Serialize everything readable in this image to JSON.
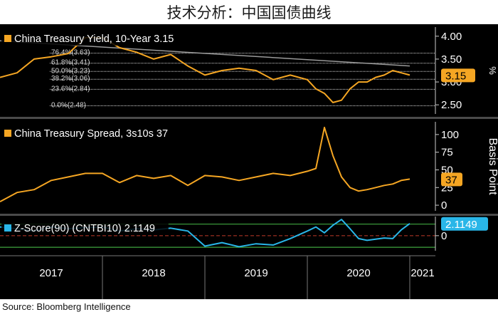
{
  "title": "技术分析：中国国债曲线",
  "source": "Source: Bloomberg Intelligence",
  "colors": {
    "background": "#000000",
    "orange": "#f5a623",
    "blue": "#29b6e8",
    "grey_trend": "#9a9a9a",
    "fib": "#d9d9d9",
    "green_band": "#3ea33e",
    "red_mid": "#c0392b"
  },
  "chart_data": [
    {
      "type": "line",
      "legend": "China Treasury Yield, 10-Year 3.15",
      "last_value_label": "3.15",
      "ylabel": "%",
      "ylim": [
        2.3,
        4.2
      ],
      "yticks": [
        2.5,
        3.0,
        3.5,
        4.0
      ],
      "ytick_labels": [
        "2.50",
        "3.00",
        "3.50",
        "4.00"
      ],
      "x": [
        "2017-01",
        "2017-03",
        "2017-05",
        "2017-07",
        "2017-09",
        "2017-11",
        "2018-01",
        "2018-03",
        "2018-05",
        "2018-07",
        "2018-09",
        "2018-11",
        "2019-01",
        "2019-03",
        "2019-05",
        "2019-07",
        "2019-09",
        "2019-11",
        "2020-01",
        "2020-02",
        "2020-03",
        "2020-04",
        "2020-05",
        "2020-06",
        "2020-07",
        "2020-08",
        "2020-09",
        "2020-10",
        "2020-11",
        "2020-12",
        "2021-01"
      ],
      "values": [
        3.1,
        3.2,
        3.5,
        3.55,
        3.62,
        3.97,
        3.97,
        3.75,
        3.65,
        3.5,
        3.6,
        3.35,
        3.15,
        3.25,
        3.3,
        3.25,
        3.05,
        3.15,
        3.05,
        2.85,
        2.75,
        2.55,
        2.6,
        2.85,
        3.0,
        3.0,
        3.1,
        3.15,
        3.25,
        3.2,
        3.15
      ],
      "trendline": {
        "x": [
          "2017-01",
          "2021-01"
        ],
        "y": [
          3.9,
          3.35
        ]
      },
      "fib_levels": [
        {
          "label": "0.0%(2.48)",
          "value": 2.48
        },
        {
          "label": "23.6%(2.84)",
          "value": 2.84
        },
        {
          "label": "38.2%(3.06)",
          "value": 3.06
        },
        {
          "label": "50.0%(3.23)",
          "value": 3.23
        },
        {
          "label": "61.8%(3.41)",
          "value": 3.41
        },
        {
          "label": "76.4%(3.63)",
          "value": 3.63
        }
      ]
    },
    {
      "type": "line",
      "legend": "China Treasury Spread, 3s10s 37",
      "last_value_label": "37",
      "ylabel": "Basis Point",
      "ylim": [
        -8,
        118
      ],
      "yticks": [
        0,
        25,
        50,
        75,
        100
      ],
      "ytick_labels": [
        "0",
        "25",
        "50",
        "75",
        "100"
      ],
      "x": [
        "2017-01",
        "2017-03",
        "2017-05",
        "2017-07",
        "2017-09",
        "2017-11",
        "2018-01",
        "2018-03",
        "2018-05",
        "2018-07",
        "2018-09",
        "2018-11",
        "2019-01",
        "2019-03",
        "2019-05",
        "2019-07",
        "2019-09",
        "2019-11",
        "2020-01",
        "2020-02",
        "2020-03",
        "2020-04",
        "2020-05",
        "2020-06",
        "2020-07",
        "2020-08",
        "2020-09",
        "2020-10",
        "2020-11",
        "2020-12",
        "2021-01"
      ],
      "values": [
        5,
        18,
        22,
        35,
        40,
        45,
        45,
        32,
        42,
        38,
        42,
        28,
        42,
        40,
        35,
        40,
        45,
        42,
        48,
        52,
        110,
        70,
        40,
        25,
        20,
        22,
        25,
        28,
        30,
        35,
        37
      ]
    },
    {
      "type": "line",
      "legend": "Z-Score(90) (CNTBI10) 2.1149",
      "last_value_label": "2.1149",
      "ylim": [
        -2.6,
        3.3
      ],
      "yticks": [
        0
      ],
      "ytick_labels": [
        "0"
      ],
      "bands": [
        2,
        -2
      ],
      "midline": 0,
      "x": [
        "2017-01",
        "2017-03",
        "2017-05",
        "2017-07",
        "2017-09",
        "2017-11",
        "2018-01",
        "2018-03",
        "2018-05",
        "2018-07",
        "2018-09",
        "2018-11",
        "2019-01",
        "2019-03",
        "2019-05",
        "2019-07",
        "2019-09",
        "2019-11",
        "2020-01",
        "2020-02",
        "2020-03",
        "2020-04",
        "2020-05",
        "2020-06",
        "2020-07",
        "2020-08",
        "2020-09",
        "2020-10",
        "2020-11",
        "2020-12",
        "2021-01"
      ],
      "values": [
        1.5,
        1.2,
        0.8,
        1.5,
        1.2,
        1.4,
        1.5,
        0.8,
        1.2,
        1.0,
        1.3,
        0.8,
        -1.8,
        -1.2,
        -1.9,
        -1.4,
        -1.6,
        -0.5,
        0.8,
        1.5,
        0.5,
        1.8,
        2.8,
        1.2,
        -0.5,
        -0.8,
        -0.6,
        -0.4,
        -0.5,
        1.0,
        2.1
      ]
    }
  ],
  "x_axis": {
    "tick_labels": [
      "2017",
      "2018",
      "2019",
      "2020",
      "2021"
    ]
  }
}
